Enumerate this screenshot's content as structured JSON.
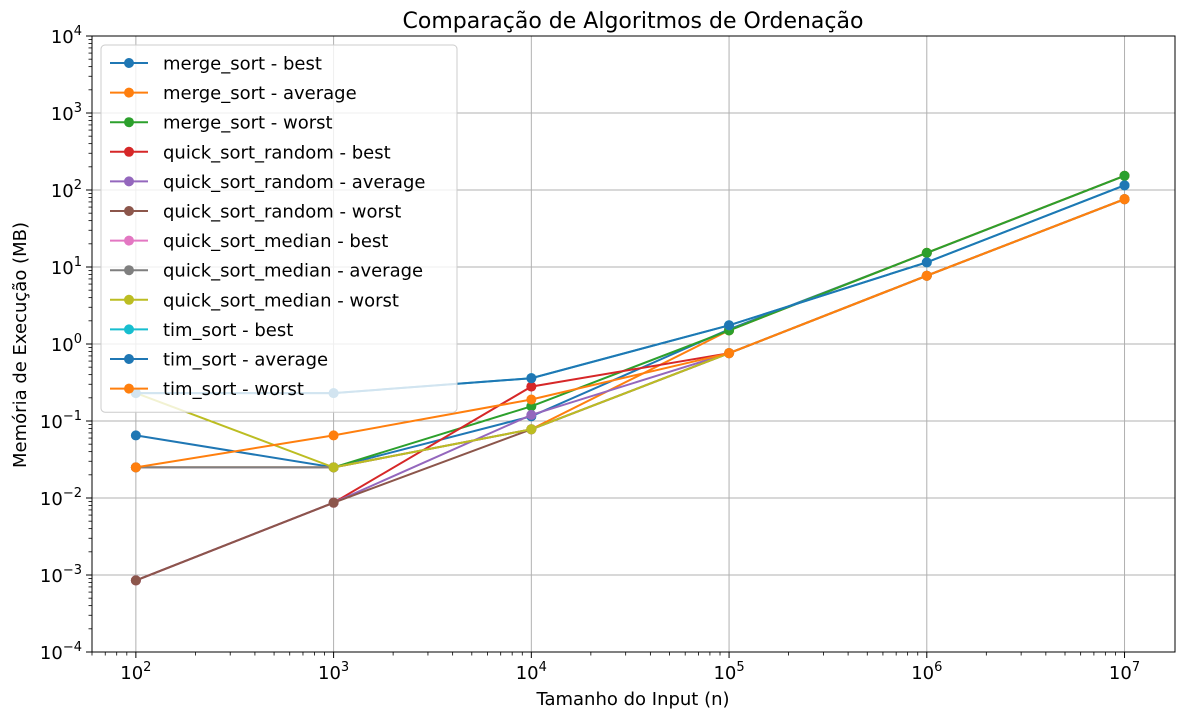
{
  "chart_data": {
    "type": "line",
    "title": "Comparação de Algoritmos de Ordenação",
    "xlabel": "Tamanho do Input (n)",
    "ylabel": "Memória de Execução (MB)",
    "xscale": "log",
    "yscale": "log",
    "xlim": [
      60,
      18000000
    ],
    "ylim": [
      0.0001,
      10000
    ],
    "grid": true,
    "legend_position": "upper-left",
    "x": [
      100,
      1000,
      10000,
      100000,
      1000000,
      10000000
    ],
    "x_ticks": [
      {
        "value": 100,
        "base": "10",
        "exp": "2"
      },
      {
        "value": 1000,
        "base": "10",
        "exp": "3"
      },
      {
        "value": 10000,
        "base": "10",
        "exp": "4"
      },
      {
        "value": 100000,
        "base": "10",
        "exp": "5"
      },
      {
        "value": 1000000,
        "base": "10",
        "exp": "6"
      },
      {
        "value": 10000000,
        "base": "10",
        "exp": "7"
      }
    ],
    "y_ticks": [
      {
        "value": 0.0001,
        "base": "10",
        "exp": "−4"
      },
      {
        "value": 0.001,
        "base": "10",
        "exp": "−3"
      },
      {
        "value": 0.01,
        "base": "10",
        "exp": "−2"
      },
      {
        "value": 0.1,
        "base": "10",
        "exp": "−1"
      },
      {
        "value": 1,
        "base": "10",
        "exp": "0"
      },
      {
        "value": 10,
        "base": "10",
        "exp": "1"
      },
      {
        "value": 100,
        "base": "10",
        "exp": "2"
      },
      {
        "value": 1000,
        "base": "10",
        "exp": "3"
      },
      {
        "value": 10000,
        "base": "10",
        "exp": "4"
      }
    ],
    "series": [
      {
        "name": "merge_sort - best",
        "color": "#1f77b4",
        "values": [
          0.065,
          0.025,
          0.115,
          1.55,
          15.2,
          153
        ]
      },
      {
        "name": "merge_sort - average",
        "color": "#ff7f0e",
        "values": [
          0.025,
          0.025,
          0.078,
          1.5,
          15.3,
          153
        ]
      },
      {
        "name": "merge_sort - worst",
        "color": "#2ca02c",
        "values": [
          0.025,
          0.025,
          0.155,
          1.5,
          15.3,
          153
        ]
      },
      {
        "name": "quick_sort_random - best",
        "color": "#d62728",
        "values": [
          0.00085,
          0.0087,
          0.28,
          0.76,
          7.7,
          76
        ]
      },
      {
        "name": "quick_sort_random - average",
        "color": "#9467bd",
        "values": [
          0.00085,
          0.0087,
          0.12,
          0.76,
          7.7,
          76
        ]
      },
      {
        "name": "quick_sort_random - worst",
        "color": "#8c564b",
        "values": [
          0.00085,
          0.0087,
          0.078,
          0.76,
          7.7,
          76
        ]
      },
      {
        "name": "quick_sort_median - best",
        "color": "#e377c2",
        "values": [
          0.025,
          0.025,
          0.078,
          0.76,
          7.7,
          76
        ]
      },
      {
        "name": "quick_sort_median - average",
        "color": "#7f7f7f",
        "values": [
          0.025,
          0.025,
          0.078,
          0.76,
          7.7,
          76
        ]
      },
      {
        "name": "quick_sort_median - worst",
        "color": "#bcbd22",
        "values": [
          0.23,
          0.025,
          0.078,
          0.76,
          7.7,
          76
        ]
      },
      {
        "name": "tim_sort - best",
        "color": "#17becf",
        "values": [
          0.23,
          0.23,
          0.36,
          1.75,
          11.5,
          115
        ]
      },
      {
        "name": "tim_sort - average",
        "color": "#1f77b4",
        "values": [
          0.23,
          0.23,
          0.36,
          1.75,
          11.5,
          115
        ]
      },
      {
        "name": "tim_sort - worst",
        "color": "#ff7f0e",
        "values": [
          0.025,
          0.065,
          0.19,
          0.76,
          7.7,
          76
        ]
      }
    ]
  }
}
